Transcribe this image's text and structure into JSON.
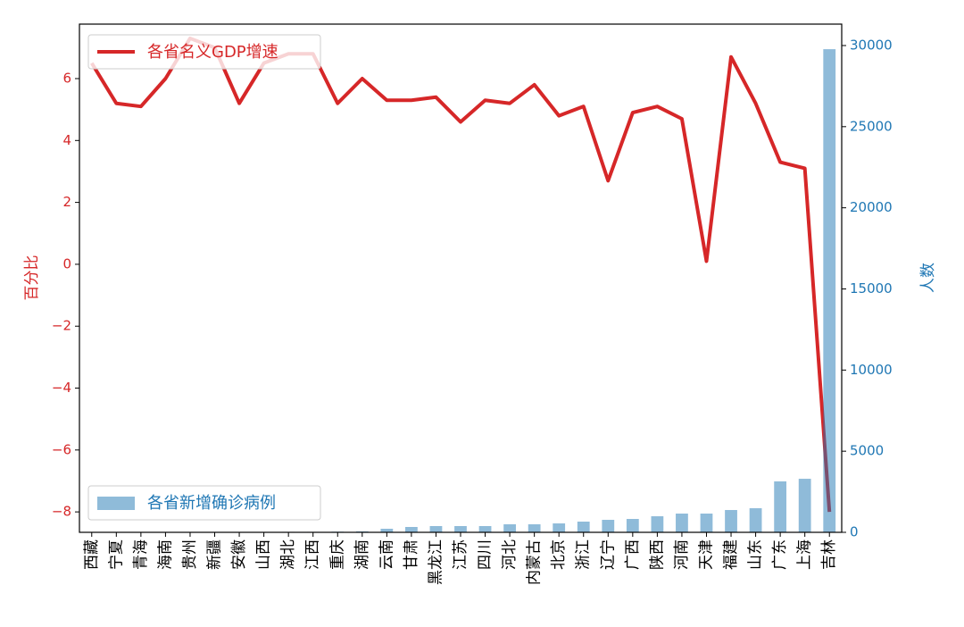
{
  "chart_data": {
    "type": "combo",
    "categories": [
      "西藏",
      "宁夏",
      "青海",
      "海南",
      "贵州",
      "新疆",
      "安徽",
      "山西",
      "湖北",
      "江西",
      "重庆",
      "湖南",
      "云南",
      "甘肃",
      "黑龙江",
      "江苏",
      "四川",
      "河北",
      "内蒙古",
      "北京",
      "浙江",
      "辽宁",
      "广西",
      "陕西",
      "河南",
      "天津",
      "福建",
      "山东",
      "广东",
      "上海",
      "吉林"
    ],
    "series": [
      {
        "name": "各省名义GDP增速",
        "type": "line",
        "color": "#d62728",
        "axis": "y",
        "legend_loc": "upper left",
        "values": [
          6.5,
          5.2,
          5.1,
          6.0,
          7.3,
          7.0,
          5.2,
          6.5,
          6.8,
          6.8,
          5.2,
          6.0,
          5.3,
          5.3,
          5.4,
          4.6,
          5.3,
          5.2,
          5.8,
          4.8,
          5.1,
          2.7,
          4.9,
          5.1,
          4.7,
          0.1,
          6.7,
          5.2,
          3.3,
          3.1,
          -8.0
        ]
      },
      {
        "name": "各省新增确诊病例",
        "type": "bar",
        "color": "#1f77b4",
        "opacity": 0.5,
        "axis": "y2",
        "legend_loc": "lower left",
        "values": [
          0,
          0,
          0,
          10,
          10,
          10,
          20,
          20,
          30,
          30,
          40,
          60,
          220,
          330,
          385,
          385,
          385,
          495,
          495,
          550,
          660,
          770,
          825,
          990,
          1155,
          1155,
          1375,
          1485,
          3140,
          3300,
          29775
        ]
      }
    ],
    "ylabel": "百分比",
    "y2label": "人数",
    "ylim": [
      -8.66,
      7.76
    ],
    "yticks": [
      {
        "value": -8,
        "label": "−8"
      },
      {
        "value": -6,
        "label": "−6"
      },
      {
        "value": -4,
        "label": "−4"
      },
      {
        "value": -2,
        "label": "−2"
      },
      0,
      2,
      4,
      6
    ],
    "y2lim": [
      0,
      31320
    ],
    "y2ticks": [
      0,
      5000,
      10000,
      15000,
      20000,
      25000,
      30000
    ],
    "grid": false
  }
}
